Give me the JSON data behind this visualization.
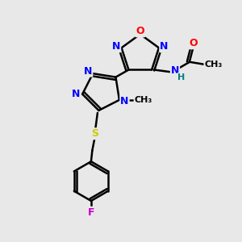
{
  "bg_color": "#e8e8e8",
  "atom_colors": {
    "C": "#000000",
    "N": "#0000ff",
    "O": "#ff0000",
    "S": "#cccc00",
    "F": "#cc00cc",
    "H": "#008080"
  },
  "bond_color": "#000000",
  "figsize": [
    3.0,
    3.0
  ],
  "dpi": 100
}
